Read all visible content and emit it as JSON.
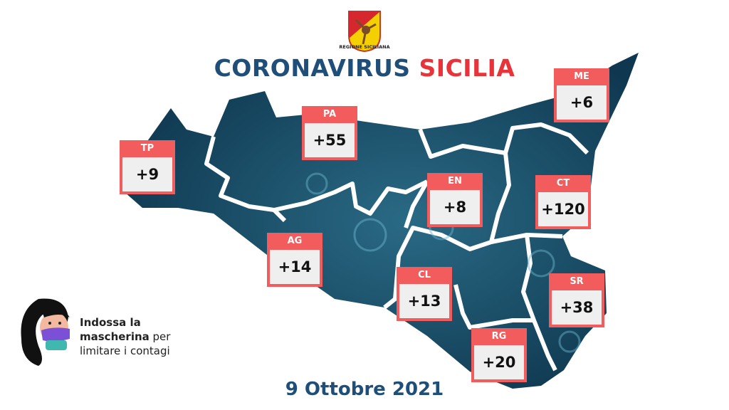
{
  "logo": {
    "text": "REGIONE SICILIANA"
  },
  "title": {
    "part1": "CORONAVIRUS",
    "part2": "SICILIA"
  },
  "colors": {
    "title_blue": "#1f4e79",
    "title_red": "#e8333b",
    "box_header": "#f25c5c",
    "map": "#16435c"
  },
  "provinces": [
    {
      "code": "TP",
      "value": "+9"
    },
    {
      "code": "PA",
      "value": "+55"
    },
    {
      "code": "ME",
      "value": "+6"
    },
    {
      "code": "EN",
      "value": "+8"
    },
    {
      "code": "CT",
      "value": "+120"
    },
    {
      "code": "AG",
      "value": "+14"
    },
    {
      "code": "CL",
      "value": "+13"
    },
    {
      "code": "SR",
      "value": "+38"
    },
    {
      "code": "RG",
      "value": "+20"
    }
  ],
  "mask_message": {
    "bold": "Indossa la mascherina",
    "rest1": " per",
    "rest2": "limitare i contagi"
  },
  "date": "9 Ottobre 2021"
}
